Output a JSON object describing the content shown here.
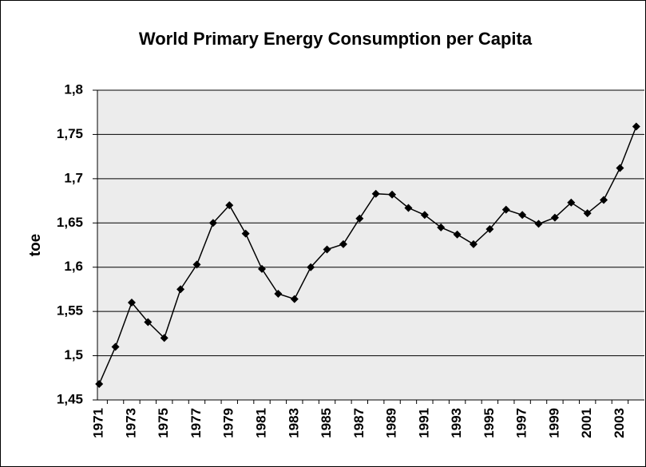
{
  "chart_data": {
    "type": "line",
    "title": "World Primary Energy Consumption per Capita",
    "y_label": "toe",
    "categories": [
      "1971",
      null,
      "1973",
      null,
      "1975",
      null,
      "1977",
      null,
      "1979",
      null,
      "1981",
      null,
      "1983",
      null,
      "1985",
      null,
      "1987",
      null,
      "1989",
      null,
      "1991",
      null,
      "1993",
      null,
      "1995",
      null,
      "1997",
      null,
      "1999",
      null,
      "2001",
      null,
      "2003",
      null
    ],
    "values": [
      1.468,
      1.51,
      1.56,
      1.538,
      1.52,
      1.575,
      1.603,
      1.65,
      1.67,
      1.638,
      1.598,
      1.57,
      1.564,
      1.6,
      1.62,
      1.626,
      1.655,
      1.683,
      1.682,
      1.667,
      1.659,
      1.645,
      1.637,
      1.626,
      1.643,
      1.665,
      1.659,
      1.649,
      1.656,
      1.673,
      1.661,
      1.676,
      1.712,
      1.759
    ],
    "color": "#000000",
    "ylim": [
      1.45,
      1.8
    ],
    "yticks": [
      {
        "value": 1.45,
        "label": "1,45"
      },
      {
        "value": 1.5,
        "label": "1,5"
      },
      {
        "value": 1.55,
        "label": "1,55"
      },
      {
        "value": 1.6,
        "label": "1,6"
      },
      {
        "value": 1.65,
        "label": "1,65"
      },
      {
        "value": 1.7,
        "label": "1,7"
      },
      {
        "value": 1.75,
        "label": "1,75"
      },
      {
        "value": 1.8,
        "label": "1,8"
      }
    ],
    "grid": true
  }
}
